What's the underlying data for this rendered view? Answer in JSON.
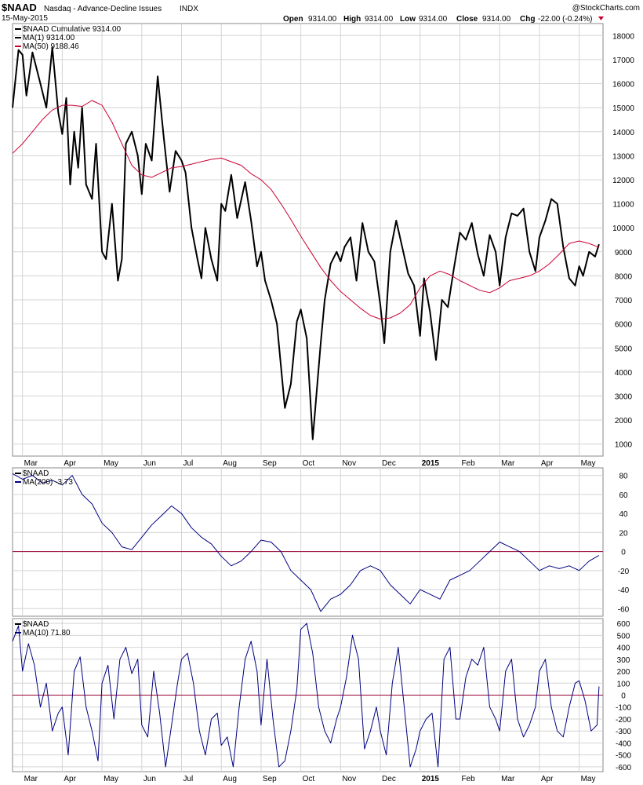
{
  "header": {
    "symbol": "$NAAD",
    "description": "Nasdaq - Advance-Decline Issues",
    "exchange": "INDX",
    "date": "15-May-2015",
    "watermark": "@StockCharts.com",
    "open_label": "Open",
    "open": "9314.00",
    "high_label": "High",
    "high": "9314.00",
    "low_label": "Low",
    "low": "9314.00",
    "close_label": "Close",
    "close": "9314.00",
    "chg_label": "Chg",
    "chg": "-22.00 (-0.24%)",
    "chg_color": "#cc0033"
  },
  "colors": {
    "price": "#000000",
    "ma_red": "#cc0033",
    "indicator": "#000080",
    "zero_line": "#990033",
    "grid": "#d4d4d4"
  },
  "x_axis": {
    "labels": [
      "Mar",
      "Apr",
      "May",
      "Jun",
      "Jul",
      "Aug",
      "Sep",
      "Oct",
      "Nov",
      "Dec",
      "2015",
      "Feb",
      "Mar",
      "Apr",
      "May"
    ],
    "bold": [
      false,
      false,
      false,
      false,
      false,
      false,
      false,
      false,
      false,
      false,
      true,
      false,
      false,
      false,
      false
    ],
    "positions": [
      0.0,
      1.0,
      2.0,
      3.0,
      4.0,
      5.0,
      6.0,
      7.0,
      8.0,
      9.0,
      10.0,
      11.0,
      12.0,
      13.0,
      14.0
    ]
  },
  "chart_data": [
    {
      "type": "line",
      "title": "$NAAD Cumulative",
      "ylim": [
        500,
        18500
      ],
      "yticks": [
        1000,
        2000,
        3000,
        4000,
        5000,
        6000,
        7000,
        8000,
        9000,
        10000,
        11000,
        12000,
        13000,
        14000,
        15000,
        16000,
        17000,
        18000
      ],
      "legend": [
        {
          "label": "$NAAD Cumulative 9314.00",
          "color": "#000000"
        },
        {
          "label": "MA(1) 9314.00",
          "color": "#000000"
        },
        {
          "label": "MA(50) 9188.46",
          "color": "#cc0033"
        }
      ],
      "x_range": [
        -0.25,
        14.6
      ],
      "series": [
        {
          "name": "$NAAD Cumulative",
          "color": "#000000",
          "width": 2,
          "x": [
            -0.25,
            -0.1,
            0,
            0.1,
            0.25,
            0.45,
            0.6,
            0.75,
            0.9,
            1.0,
            1.1,
            1.2,
            1.3,
            1.4,
            1.5,
            1.6,
            1.75,
            1.85,
            2.0,
            2.1,
            2.25,
            2.4,
            2.5,
            2.6,
            2.75,
            2.9,
            3.0,
            3.1,
            3.25,
            3.4,
            3.55,
            3.7,
            3.85,
            4.0,
            4.1,
            4.25,
            4.4,
            4.5,
            4.6,
            4.75,
            4.9,
            5.0,
            5.1,
            5.25,
            5.4,
            5.6,
            5.75,
            5.9,
            6.0,
            6.1,
            6.25,
            6.4,
            6.6,
            6.75,
            6.9,
            7.0,
            7.15,
            7.3,
            7.5,
            7.6,
            7.75,
            7.9,
            8.0,
            8.1,
            8.25,
            8.4,
            8.55,
            8.7,
            8.85,
            9.0,
            9.1,
            9.25,
            9.4,
            9.55,
            9.7,
            9.85,
            10.0,
            10.1,
            10.25,
            10.4,
            10.55,
            10.7,
            10.85,
            11.0,
            11.15,
            11.3,
            11.45,
            11.6,
            11.75,
            11.9,
            12.0,
            12.15,
            12.3,
            12.45,
            12.6,
            12.75,
            12.9,
            13.0,
            13.15,
            13.3,
            13.45,
            13.6,
            13.75,
            13.9,
            14.0,
            14.1,
            14.25,
            14.4,
            14.5
          ],
          "y": [
            15000,
            17400,
            17200,
            15500,
            17300,
            16000,
            15000,
            17500,
            14800,
            13900,
            15400,
            11800,
            14000,
            12500,
            15000,
            11800,
            11200,
            13500,
            9000,
            8700,
            11000,
            7800,
            8700,
            13500,
            14000,
            13000,
            11400,
            13500,
            12800,
            16300,
            13800,
            11500,
            13200,
            12800,
            12300,
            10000,
            8700,
            7900,
            10000,
            8700,
            7800,
            11000,
            10700,
            12200,
            10400,
            11900,
            10300,
            8400,
            9000,
            7800,
            7000,
            6000,
            2500,
            3500,
            6100,
            6600,
            5400,
            1200,
            5200,
            7000,
            8500,
            9000,
            8600,
            9200,
            9600,
            7800,
            10200,
            9000,
            8600,
            6800,
            5200,
            9000,
            10300,
            9200,
            8100,
            7600,
            5500,
            7900,
            6500,
            4500,
            7000,
            6700,
            8300,
            9800,
            9500,
            10200,
            8900,
            8000,
            9700,
            9000,
            7600,
            9600,
            10600,
            10500,
            10800,
            9000,
            8200,
            9600,
            10300,
            11200,
            11000,
            9200,
            7900,
            7600,
            8400,
            8000,
            9000,
            8800,
            9314
          ]
        },
        {
          "name": "MA(50)",
          "color": "#cc0033",
          "width": 1,
          "x": [
            -0.25,
            0,
            0.25,
            0.5,
            0.75,
            1.0,
            1.25,
            1.5,
            1.75,
            2.0,
            2.25,
            2.5,
            2.75,
            3.0,
            3.25,
            3.5,
            3.75,
            4.0,
            4.25,
            4.5,
            4.75,
            5.0,
            5.25,
            5.5,
            5.75,
            6.0,
            6.25,
            6.5,
            6.75,
            7.0,
            7.25,
            7.5,
            7.75,
            8.0,
            8.25,
            8.5,
            8.75,
            9.0,
            9.25,
            9.5,
            9.75,
            10.0,
            10.25,
            10.5,
            10.75,
            11.0,
            11.25,
            11.5,
            11.75,
            12.0,
            12.25,
            12.5,
            12.75,
            13.0,
            13.25,
            13.5,
            13.75,
            14.0,
            14.25,
            14.5
          ],
          "y": [
            13100,
            13500,
            14000,
            14500,
            14900,
            15100,
            15100,
            15050,
            15300,
            15100,
            14400,
            13500,
            12600,
            12200,
            12100,
            12300,
            12500,
            12550,
            12650,
            12750,
            12850,
            12900,
            12750,
            12600,
            12250,
            12000,
            11600,
            11000,
            10350,
            9650,
            9000,
            8350,
            7800,
            7350,
            7000,
            6650,
            6350,
            6200,
            6250,
            6450,
            6800,
            7500,
            8000,
            8200,
            8050,
            7800,
            7600,
            7400,
            7300,
            7500,
            7800,
            7900,
            8000,
            8200,
            8500,
            8900,
            9350,
            9450,
            9350,
            9188
          ]
        }
      ]
    },
    {
      "type": "line",
      "title": "$NAAD",
      "ylim": [
        -68,
        88
      ],
      "yticks": [
        -60,
        -40,
        -20,
        0,
        20,
        40,
        60,
        80
      ],
      "zero_line": 0,
      "legend": [
        {
          "label": "$NAAD",
          "color": "#000000"
        },
        {
          "label": "MA(200) -3.73",
          "color": "#000080"
        }
      ],
      "x_range": [
        -0.25,
        14.6
      ],
      "series": [
        {
          "name": "MA(200)",
          "color": "#000080",
          "width": 1,
          "x": [
            -0.25,
            0,
            0.25,
            0.5,
            0.75,
            1.0,
            1.25,
            1.5,
            1.75,
            2.0,
            2.25,
            2.5,
            2.75,
            3.0,
            3.25,
            3.5,
            3.75,
            4.0,
            4.25,
            4.5,
            4.75,
            5.0,
            5.25,
            5.5,
            5.75,
            6.0,
            6.25,
            6.5,
            6.75,
            7.0,
            7.25,
            7.5,
            7.75,
            8.0,
            8.25,
            8.5,
            8.75,
            9.0,
            9.25,
            9.5,
            9.75,
            10.0,
            10.25,
            10.5,
            10.75,
            11.0,
            11.25,
            11.5,
            11.75,
            12.0,
            12.25,
            12.5,
            12.75,
            13.0,
            13.25,
            13.5,
            13.75,
            14.0,
            14.25,
            14.5
          ],
          "y": [
            82,
            76,
            80,
            72,
            75,
            70,
            80,
            60,
            50,
            30,
            20,
            5,
            2,
            15,
            28,
            38,
            48,
            40,
            25,
            15,
            8,
            -5,
            -15,
            -10,
            0,
            12,
            10,
            0,
            -20,
            -30,
            -40,
            -63,
            -50,
            -45,
            -35,
            -20,
            -15,
            -20,
            -35,
            -45,
            -55,
            -40,
            -45,
            -50,
            -30,
            -25,
            -20,
            -10,
            0,
            10,
            5,
            0,
            -10,
            -20,
            -15,
            -18,
            -15,
            -20,
            -10,
            -4
          ]
        }
      ]
    },
    {
      "type": "line",
      "title": "$NAAD",
      "ylim": [
        -640,
        640
      ],
      "yticks": [
        -600,
        -500,
        -400,
        -300,
        -200,
        -100,
        0,
        100,
        200,
        300,
        400,
        500,
        600
      ],
      "zero_line": 0,
      "legend": [
        {
          "label": "$NAAD",
          "color": "#000000"
        },
        {
          "label": "MA(10) 71.80",
          "color": "#000080"
        }
      ],
      "x_range": [
        -0.25,
        14.6
      ],
      "series": [
        {
          "name": "MA(10)",
          "color": "#000080",
          "width": 1,
          "x": [
            -0.25,
            -0.1,
            0,
            0.15,
            0.3,
            0.45,
            0.6,
            0.75,
            0.9,
            1.0,
            1.15,
            1.3,
            1.45,
            1.6,
            1.75,
            1.9,
            2.0,
            2.15,
            2.3,
            2.45,
            2.6,
            2.75,
            2.9,
            3.0,
            3.15,
            3.3,
            3.45,
            3.6,
            3.75,
            3.9,
            4.0,
            4.15,
            4.3,
            4.45,
            4.6,
            4.75,
            4.9,
            5.0,
            5.15,
            5.3,
            5.45,
            5.6,
            5.75,
            5.9,
            6.0,
            6.15,
            6.3,
            6.45,
            6.6,
            6.75,
            6.9,
            7.0,
            7.15,
            7.3,
            7.45,
            7.6,
            7.75,
            7.9,
            8.0,
            8.15,
            8.3,
            8.45,
            8.6,
            8.75,
            8.9,
            9.0,
            9.15,
            9.3,
            9.45,
            9.6,
            9.75,
            9.9,
            10.0,
            10.15,
            10.3,
            10.45,
            10.6,
            10.75,
            10.9,
            11.0,
            11.15,
            11.3,
            11.45,
            11.6,
            11.75,
            11.9,
            12.0,
            12.15,
            12.3,
            12.45,
            12.6,
            12.75,
            12.9,
            13.0,
            13.15,
            13.3,
            13.45,
            13.6,
            13.75,
            13.9,
            14.0,
            14.15,
            14.3,
            14.45,
            14.5
          ],
          "y": [
            450,
            580,
            200,
            430,
            250,
            -100,
            100,
            -300,
            -150,
            -100,
            -500,
            200,
            320,
            -100,
            -300,
            -550,
            100,
            250,
            -200,
            300,
            400,
            180,
            300,
            -250,
            -350,
            200,
            -150,
            -600,
            -250,
            100,
            300,
            350,
            100,
            -300,
            -500,
            -200,
            -150,
            -420,
            -350,
            -600,
            -100,
            300,
            450,
            200,
            -250,
            300,
            -200,
            -600,
            -550,
            -300,
            50,
            550,
            600,
            350,
            -100,
            -300,
            -400,
            -200,
            -100,
            150,
            500,
            300,
            -450,
            -300,
            -100,
            -300,
            -500,
            100,
            400,
            -100,
            -600,
            -450,
            -300,
            -200,
            -150,
            -600,
            300,
            400,
            -200,
            -200,
            150,
            300,
            250,
            400,
            -100,
            -200,
            -300,
            200,
            300,
            -200,
            -350,
            -250,
            -100,
            200,
            300,
            -100,
            -300,
            -350,
            -100,
            100,
            120,
            -50,
            -300,
            -250,
            72
          ]
        }
      ]
    }
  ]
}
